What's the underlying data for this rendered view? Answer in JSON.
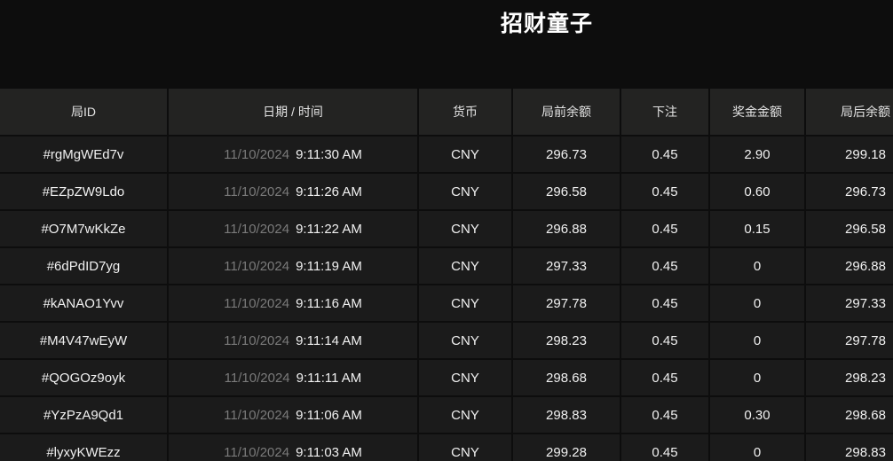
{
  "title": "招财童子",
  "colors": {
    "page_background": "#0d0d0d",
    "header_row_background": "#232322",
    "body_row_background": "#1b1b1b",
    "divider": "#0d0d0d",
    "primary_text": "#f1f1f1",
    "header_text": "#e3e3e3",
    "date_text": "#7a7a7a",
    "title_text": "#ffffff"
  },
  "table": {
    "columns": [
      {
        "label": "局ID"
      },
      {
        "label": "日期 / 时间"
      },
      {
        "label": "货币"
      },
      {
        "label": "局前余额"
      },
      {
        "label": "下注"
      },
      {
        "label": "奖金金额"
      },
      {
        "label": "局后余额"
      }
    ],
    "rows": [
      {
        "id": "#rgMgWEd7v",
        "date": "11/10/2024",
        "time": "9:11:30 AM",
        "currency": "CNY",
        "balance_before": "296.73",
        "bet": "0.45",
        "prize": "2.90",
        "balance_after": "299.18"
      },
      {
        "id": "#EZpZW9Ldo",
        "date": "11/10/2024",
        "time": "9:11:26 AM",
        "currency": "CNY",
        "balance_before": "296.58",
        "bet": "0.45",
        "prize": "0.60",
        "balance_after": "296.73"
      },
      {
        "id": "#O7M7wKkZe",
        "date": "11/10/2024",
        "time": "9:11:22 AM",
        "currency": "CNY",
        "balance_before": "296.88",
        "bet": "0.45",
        "prize": "0.15",
        "balance_after": "296.58"
      },
      {
        "id": "#6dPdID7yg",
        "date": "11/10/2024",
        "time": "9:11:19 AM",
        "currency": "CNY",
        "balance_before": "297.33",
        "bet": "0.45",
        "prize": "0",
        "balance_after": "296.88"
      },
      {
        "id": "#kANAO1Yvv",
        "date": "11/10/2024",
        "time": "9:11:16 AM",
        "currency": "CNY",
        "balance_before": "297.78",
        "bet": "0.45",
        "prize": "0",
        "balance_after": "297.33"
      },
      {
        "id": "#M4V47wEyW",
        "date": "11/10/2024",
        "time": "9:11:14 AM",
        "currency": "CNY",
        "balance_before": "298.23",
        "bet": "0.45",
        "prize": "0",
        "balance_after": "297.78"
      },
      {
        "id": "#QOGOz9oyk",
        "date": "11/10/2024",
        "time": "9:11:11 AM",
        "currency": "CNY",
        "balance_before": "298.68",
        "bet": "0.45",
        "prize": "0",
        "balance_after": "298.23"
      },
      {
        "id": "#YzPzA9Qd1",
        "date": "11/10/2024",
        "time": "9:11:06 AM",
        "currency": "CNY",
        "balance_before": "298.83",
        "bet": "0.45",
        "prize": "0.30",
        "balance_after": "298.68"
      },
      {
        "id": "#lyxyKWEzz",
        "date": "11/10/2024",
        "time": "9:11:03 AM",
        "currency": "CNY",
        "balance_before": "299.28",
        "bet": "0.45",
        "prize": "0",
        "balance_after": "298.83"
      }
    ]
  }
}
